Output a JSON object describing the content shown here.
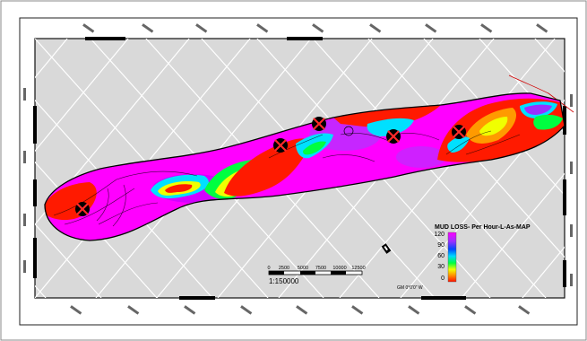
{
  "legend": {
    "title": "MUD LOSS- Per Hour-L-As-MAP",
    "ticks": [
      "120",
      "90",
      "60",
      "30",
      "0"
    ],
    "colors": [
      "#ff00ff",
      "#9b30ff",
      "#0047ff",
      "#00d8ff",
      "#00ff40",
      "#f0ff00",
      "#ff9a00",
      "#ff2000",
      "#e80000"
    ]
  },
  "scale_bar": {
    "tick_labels": [
      "0",
      "2500",
      "5000",
      "7500",
      "10000",
      "12500"
    ],
    "ratio": "1:150000"
  },
  "north_arrow": {
    "declination": "GM 0°0'0\" W"
  },
  "colors": {
    "background": "#d9d9d9",
    "map_fill": "#ff00ff",
    "loss_high": "#ff1a00",
    "well_marker": "#000000",
    "well_cross": "#ff2a2a",
    "grid_line": "#ffffff"
  },
  "icons": {
    "well": "well-marker-icon",
    "north": "north-arrow-icon"
  }
}
